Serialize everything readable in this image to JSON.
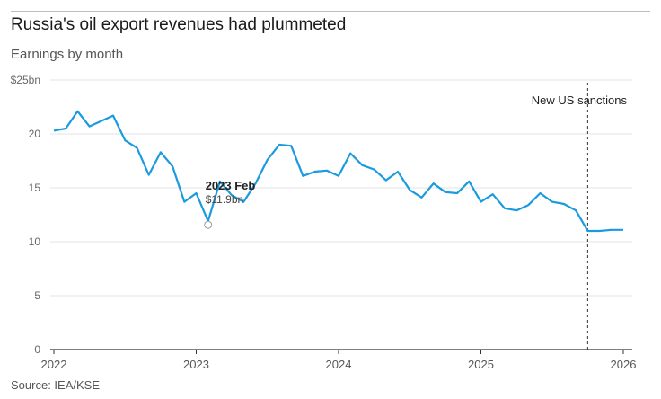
{
  "header": {
    "title": "Russia's oil export revenues had plummeted",
    "subtitle": "Earnings by month"
  },
  "footer": {
    "source": "Source: IEA/KSE"
  },
  "colors": {
    "line": "#1a9ae0",
    "grid": "#e3e3e3",
    "axis": "#333333",
    "annotation_line": "#333333"
  },
  "chart_data": {
    "type": "line",
    "title": "Russia's oil export revenues had plummeted",
    "subtitle": "Earnings by month",
    "xlabel": "",
    "ylabel": "",
    "x_start": "2022-01",
    "x_end": "2026-01",
    "x_ticks": [
      "2022",
      "2023",
      "2024",
      "2025",
      "2026"
    ],
    "y_ticks": [
      "0",
      "5",
      "10",
      "15",
      "20",
      "$25bn"
    ],
    "y_tick_values": [
      0,
      5,
      10,
      15,
      20,
      25
    ],
    "ylim": [
      0,
      25
    ],
    "grid": true,
    "series": [
      {
        "x": [
          "2022-01",
          "2022-02",
          "2022-03",
          "2022-04",
          "2022-05",
          "2022-06",
          "2022-07",
          "2022-08",
          "2022-09",
          "2022-10",
          "2022-11",
          "2022-12",
          "2023-01",
          "2023-02",
          "2023-03",
          "2023-04",
          "2023-05",
          "2023-06",
          "2023-07",
          "2023-08",
          "2023-09",
          "2023-10",
          "2023-11",
          "2023-12",
          "2024-01",
          "2024-02",
          "2024-03",
          "2024-04",
          "2024-05",
          "2024-06",
          "2024-07",
          "2024-08",
          "2024-09",
          "2024-10",
          "2024-11",
          "2024-12",
          "2025-01",
          "2025-02",
          "2025-03",
          "2025-04",
          "2025-05",
          "2025-06",
          "2025-07",
          "2025-08",
          "2025-09",
          "2025-10",
          "2025-11",
          "2025-12",
          "2026-01"
        ],
        "values": [
          20.3,
          20.5,
          22.1,
          20.7,
          21.2,
          21.7,
          19.4,
          18.7,
          16.2,
          18.3,
          17.0,
          13.7,
          14.5,
          11.9,
          15.6,
          14.3,
          13.7,
          15.4,
          17.6,
          19.0,
          18.9,
          16.1,
          16.5,
          16.6,
          16.1,
          18.2,
          17.1,
          16.7,
          15.7,
          16.5,
          14.8,
          14.1,
          15.4,
          14.6,
          14.5,
          15.6,
          13.7,
          14.4,
          13.1,
          12.9,
          13.4,
          14.5,
          13.7,
          13.5,
          12.9,
          11.0,
          11.0,
          11.1,
          11.1
        ]
      }
    ],
    "annotations": [
      {
        "x": "2023-02",
        "y": 11.9,
        "title": "2023 Feb",
        "value": "$11.9bn"
      },
      {
        "x": "2025-10",
        "type": "vertical-line",
        "label": "New US sanctions"
      }
    ]
  }
}
